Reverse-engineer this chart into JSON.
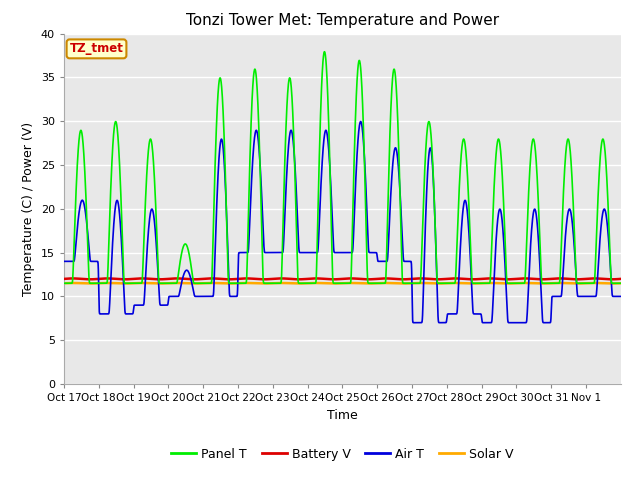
{
  "title": "Tonzi Tower Met: Temperature and Power",
  "xlabel": "Time",
  "ylabel": "Temperature (C) / Power (V)",
  "ylim": [
    0,
    40
  ],
  "yticks": [
    0,
    5,
    10,
    15,
    20,
    25,
    30,
    35,
    40
  ],
  "bg_color": "#e8e8e8",
  "legend_labels": [
    "Panel T",
    "Battery V",
    "Air T",
    "Solar V"
  ],
  "legend_colors": [
    "#00ee00",
    "#dd0000",
    "#0000dd",
    "#ffaa00"
  ],
  "annotation_text": "TZ_tmet",
  "annotation_bg": "#ffffcc",
  "annotation_border": "#cc8800",
  "annotation_text_color": "#cc0000",
  "panel_t_color": "#00ee00",
  "battery_v_color": "#dd0000",
  "air_t_color": "#0000dd",
  "solar_v_color": "#ffaa00",
  "n_days": 16,
  "tick_labels": [
    "Oct 17",
    "Oct 18",
    "Oct 19",
    "Oct 20",
    "Oct 21",
    "Oct 22",
    "Oct 23",
    "Oct 24",
    "Oct 25",
    "Oct 26",
    "Oct 27",
    "Oct 28",
    "Oct 29",
    "Oct 30",
    "Oct 31",
    "Nov 1"
  ],
  "panel_peaks": [
    29,
    30,
    28,
    16,
    35,
    36,
    35,
    38,
    37,
    36,
    30,
    28,
    28,
    28,
    28,
    28
  ],
  "air_peaks": [
    21,
    21,
    20,
    13,
    28,
    29,
    29,
    29,
    30,
    27,
    27,
    21,
    20,
    20,
    20,
    20
  ],
  "air_mins": [
    14,
    8,
    9,
    10,
    10,
    15,
    15,
    15,
    15,
    14,
    7,
    8,
    7,
    7,
    10,
    10
  ],
  "battery_level": 12.0,
  "solar_level": 11.5
}
